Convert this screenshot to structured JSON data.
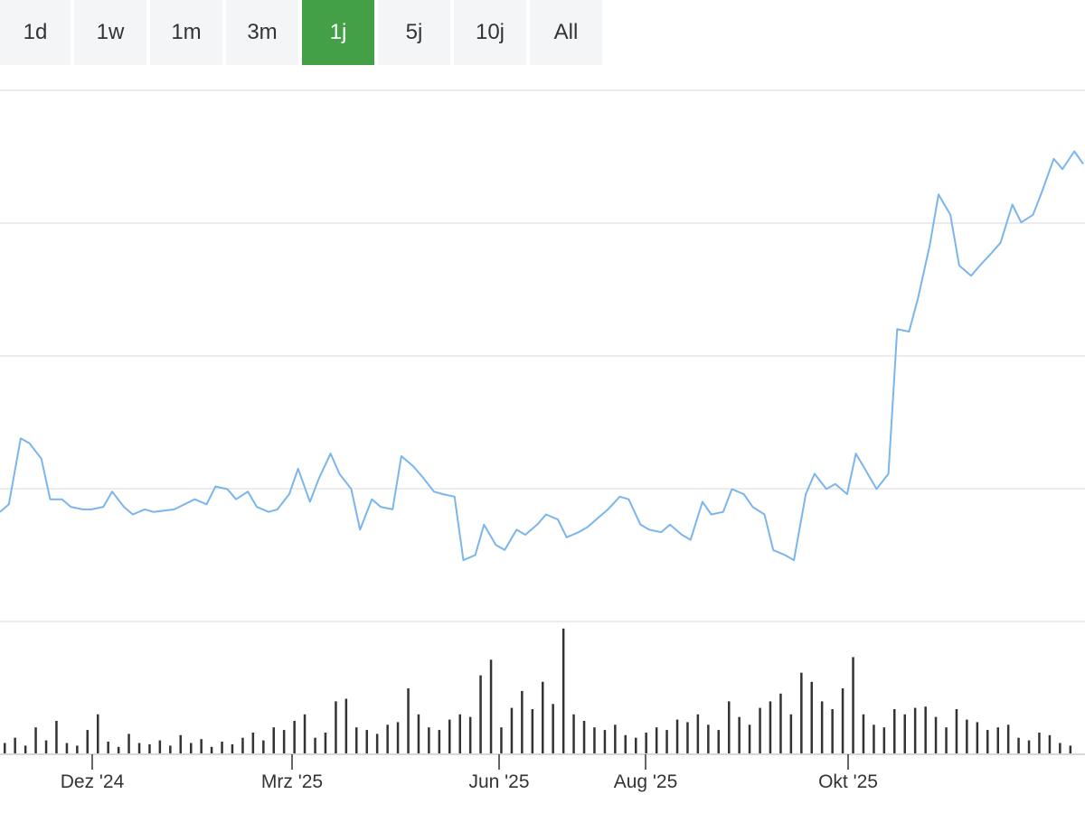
{
  "range_selector": {
    "buttons": [
      "1d",
      "1w",
      "1m",
      "3m",
      "1j",
      "5j",
      "10j",
      "All"
    ],
    "active": "1j"
  },
  "colors": {
    "line": "#7cb5ec",
    "volume": "#333333",
    "active_button": "#43a047",
    "button_bg": "#f4f5f6",
    "grid": "#e6e6e6"
  },
  "chart_data": {
    "type": "line",
    "title": "",
    "xlabel": "",
    "ylabel": "",
    "grid": "horizontal",
    "y_axis_labels_shown": false,
    "x_tick_labels": [
      "Dez '24",
      "Mrz '25",
      "Jun '25",
      "Aug '25",
      "Okt '25"
    ],
    "price_series": {
      "name": "",
      "note_units": "relative scale, y axis unlabeled",
      "x": [
        "2024-10-29",
        "2024-11-01",
        "2024-11-05",
        "2024-11-08",
        "2024-11-12",
        "2024-11-15",
        "2024-11-19",
        "2024-11-22",
        "2024-11-26",
        "2024-11-29",
        "2024-12-03",
        "2024-12-06",
        "2024-12-10",
        "2024-12-13",
        "2024-12-17",
        "2024-12-20",
        "2024-12-27",
        "2025-01-03",
        "2025-01-07",
        "2025-01-10",
        "2025-01-14",
        "2025-01-17",
        "2025-01-21",
        "2025-01-24",
        "2025-01-28",
        "2025-01-31",
        "2025-02-04",
        "2025-02-07",
        "2025-02-11",
        "2025-02-14",
        "2025-02-18",
        "2025-02-21",
        "2025-02-25",
        "2025-02-28",
        "2025-03-04",
        "2025-03-07",
        "2025-03-11",
        "2025-03-14",
        "2025-03-18",
        "2025-03-21",
        "2025-03-25",
        "2025-03-28",
        "2025-04-01",
        "2025-04-04",
        "2025-04-08",
        "2025-04-11",
        "2025-04-15",
        "2025-04-18",
        "2025-04-22",
        "2025-04-25",
        "2025-04-29",
        "2025-05-02",
        "2025-05-06",
        "2025-05-09",
        "2025-05-13",
        "2025-05-16",
        "2025-05-20",
        "2025-05-23",
        "2025-05-27",
        "2025-05-30",
        "2025-06-03",
        "2025-06-06",
        "2025-06-10",
        "2025-06-13",
        "2025-06-17",
        "2025-06-20",
        "2025-06-24",
        "2025-06-27",
        "2025-07-01",
        "2025-07-04",
        "2025-07-08",
        "2025-07-11",
        "2025-07-15",
        "2025-07-18",
        "2025-07-22",
        "2025-07-25",
        "2025-07-29",
        "2025-08-01",
        "2025-08-05",
        "2025-08-08",
        "2025-08-12",
        "2025-08-15",
        "2025-08-19",
        "2025-08-22",
        "2025-08-26",
        "2025-08-29",
        "2025-09-02",
        "2025-09-05",
        "2025-09-09",
        "2025-09-12",
        "2025-09-16",
        "2025-09-19",
        "2025-09-23",
        "2025-09-26",
        "2025-09-30",
        "2025-10-03",
        "2025-10-07",
        "2025-10-10",
        "2025-10-14",
        "2025-10-17",
        "2025-10-21",
        "2025-10-24",
        "2025-10-28",
        "2025-10-31"
      ],
      "y": [
        25,
        28,
        54,
        52,
        46,
        30,
        30,
        27,
        26,
        26,
        27,
        33,
        27,
        24,
        26,
        25,
        26,
        30,
        28,
        35,
        34,
        30,
        33,
        27,
        25,
        26,
        32,
        42,
        29,
        38,
        48,
        40,
        34,
        18,
        30,
        27,
        26,
        47,
        43,
        39,
        33,
        32,
        31,
        6,
        8,
        20,
        12,
        10,
        18,
        16,
        20,
        24,
        22,
        15,
        17,
        19,
        23,
        26,
        31,
        30,
        20,
        18,
        17,
        20,
        16,
        14,
        29,
        24,
        25,
        34,
        32,
        27,
        24,
        10,
        8,
        6,
        32,
        40,
        34,
        36,
        32,
        48,
        40,
        34,
        40,
        97,
        96,
        109,
        130,
        150,
        142,
        122,
        118,
        122,
        127,
        131,
        146,
        139,
        142,
        151,
        164,
        160,
        167,
        162
      ]
    },
    "volume_series": {
      "name": "",
      "note": "relative heights",
      "values": [
        8,
        12,
        6,
        20,
        10,
        25,
        8,
        6,
        18,
        30,
        9,
        5,
        15,
        8,
        7,
        10,
        6,
        14,
        8,
        11,
        5,
        9,
        7,
        12,
        16,
        10,
        20,
        18,
        25,
        30,
        12,
        16,
        40,
        42,
        20,
        18,
        15,
        22,
        24,
        50,
        30,
        20,
        18,
        26,
        30,
        28,
        60,
        72,
        20,
        35,
        48,
        34,
        55,
        38,
        96,
        30,
        25,
        20,
        18,
        22,
        14,
        12,
        16,
        20,
        18,
        26,
        24,
        30,
        22,
        18,
        40,
        28,
        22,
        35,
        40,
        46,
        30,
        62,
        55,
        40,
        34,
        50,
        74,
        30,
        22,
        20,
        34,
        30,
        35,
        36,
        28,
        20,
        34,
        26,
        24,
        18,
        20,
        22,
        12,
        10,
        16,
        14,
        8,
        6
      ]
    }
  }
}
